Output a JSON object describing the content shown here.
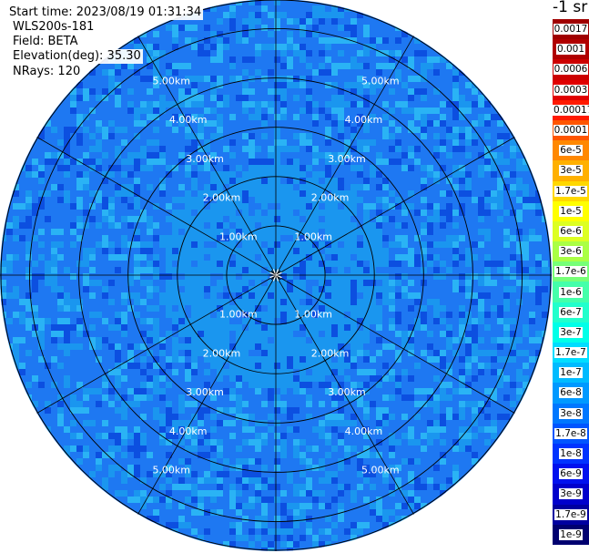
{
  "info": {
    "start_time": "Start time: 2023/08/19 01:31:34",
    "instrument": "WLS200s-181",
    "field": "Field: BETA",
    "elevation": "Elevation(deg): 35.30",
    "nrays": "NRays: 120"
  },
  "colorbar": {
    "title": "-1 sr",
    "levels": [
      {
        "label": "0.0017",
        "color": "#a00000"
      },
      {
        "label": "0.001",
        "color": "#b00000"
      },
      {
        "label": "0.0006",
        "color": "#cc0000"
      },
      {
        "label": "0.0003",
        "color": "#e00000"
      },
      {
        "label": "0.00017",
        "color": "#ff1a00"
      },
      {
        "label": "0.0001",
        "color": "#ff5500"
      },
      {
        "label": "6e-5",
        "color": "#ff8800"
      },
      {
        "label": "3e-5",
        "color": "#ffb000"
      },
      {
        "label": "1.7e-5",
        "color": "#ffd800"
      },
      {
        "label": "1e-5",
        "color": "#ffff00"
      },
      {
        "label": "6e-6",
        "color": "#ddff22"
      },
      {
        "label": "3e-6",
        "color": "#aaff44"
      },
      {
        "label": "1.7e-6",
        "color": "#77ff77"
      },
      {
        "label": "1e-6",
        "color": "#44ffaa"
      },
      {
        "label": "6e-7",
        "color": "#22ffcc"
      },
      {
        "label": "3e-7",
        "color": "#00ffe8"
      },
      {
        "label": "1.7e-7",
        "color": "#00ddff"
      },
      {
        "label": "1e-7",
        "color": "#00bbff"
      },
      {
        "label": "6e-8",
        "color": "#0099ff"
      },
      {
        "label": "3e-8",
        "color": "#0077ff"
      },
      {
        "label": "1.7e-8",
        "color": "#0055ff"
      },
      {
        "label": "1e-8",
        "color": "#0033ff"
      },
      {
        "label": "6e-9",
        "color": "#0011ee"
      },
      {
        "label": "3e-9",
        "color": "#0000cc"
      },
      {
        "label": "1.7e-9",
        "color": "#0000a0"
      },
      {
        "label": "1e-9",
        "color": "#000070"
      }
    ]
  },
  "chart_data": {
    "type": "heatmap",
    "projection": "polar (PPI scan)",
    "field": "BETA",
    "elevation_deg": 35.3,
    "nrays": 120,
    "unit": "-1 sr",
    "max_range_km": 5.6,
    "range_rings_km": [
      1,
      2,
      3,
      4,
      5
    ],
    "range_ring_labels": [
      "1.00km",
      "2.00km",
      "3.00km",
      "4.00km",
      "5.00km"
    ],
    "spokes_deg": [
      0,
      30,
      60,
      90,
      120,
      150,
      180,
      210,
      240,
      270,
      300,
      330
    ],
    "colors": {
      "background_field": "#1e78f2",
      "inner_field": "#1a96ef",
      "bright_cell": "#2ab3f5",
      "dark_cell": "#0c4fe0",
      "grid": "#000000"
    },
    "dominant_range": [
      "1e-8",
      "1e-7"
    ],
    "grid": true
  }
}
